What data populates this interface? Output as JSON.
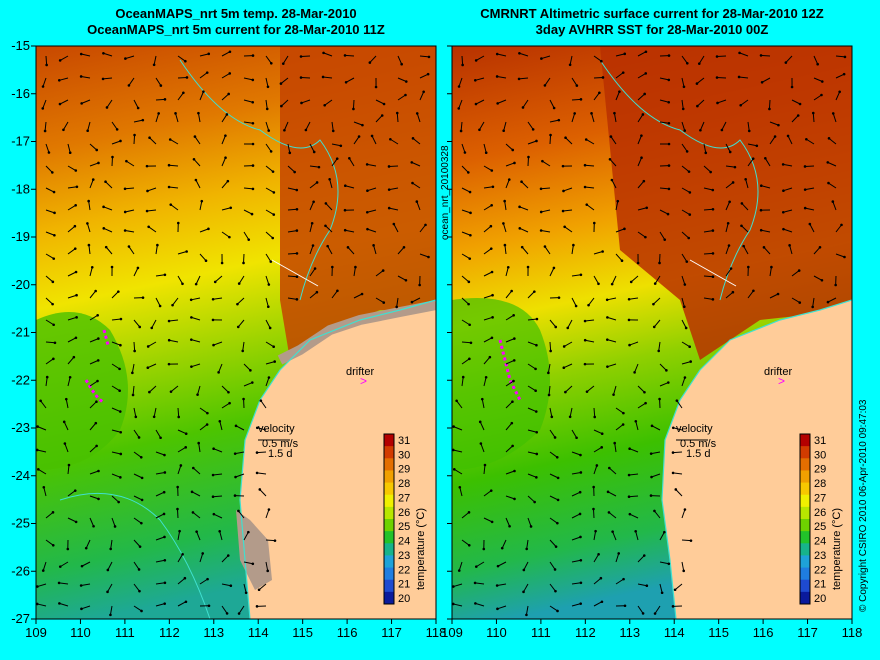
{
  "left_panel": {
    "title_line1": "OceanMAPS_nrt 5m temp. 28-Mar-2010",
    "title_line2": "OceanMAPS_nrt 5m current for 28-Mar-2010 11Z"
  },
  "right_panel": {
    "title_line1": "CMRNRT Altimetric surface current for 28-Mar-2010 12Z",
    "title_line2": "3day AVHRR SST for 28-Mar-2010 00Z"
  },
  "axes": {
    "lon_ticks": [
      "109",
      "110",
      "111",
      "112",
      "113",
      "114",
      "115",
      "116",
      "117",
      "118"
    ],
    "lat_ticks": [
      "-15",
      "-16",
      "-17",
      "-18",
      "-19",
      "-20",
      "-21",
      "-22",
      "-23",
      "-24",
      "-25",
      "-26",
      "-27"
    ]
  },
  "labels": {
    "drifter": "drifter",
    "velocity": "velocity",
    "speed": "0.5 m/s",
    "duration": "1.5 d",
    "colorbar_title": "temperature (°C)",
    "side_id": "ocean_nrt_20100328",
    "copyright": "© Copyright CSIRO 2010   06-Apr-2010 09:47:03"
  },
  "colorbar": {
    "ticks": [
      "31",
      "30",
      "29",
      "28",
      "27",
      "26",
      "25",
      "24",
      "23",
      "22",
      "21",
      "20"
    ],
    "colors": [
      "#b30000",
      "#d23b00",
      "#e36e00",
      "#f0a000",
      "#f7c800",
      "#f0f000",
      "#b8e600",
      "#6ed200",
      "#22c22a",
      "#17b38a",
      "#1ea2d8",
      "#1f7de0",
      "#1e4ad0",
      "#0a1a9c"
    ]
  },
  "map_colors": {
    "land": "#ffcc99",
    "land_shade": "#b39b8a",
    "coast": "#40e0d0",
    "drifter_track": "#ff00ff",
    "background": "#00ffff"
  }
}
